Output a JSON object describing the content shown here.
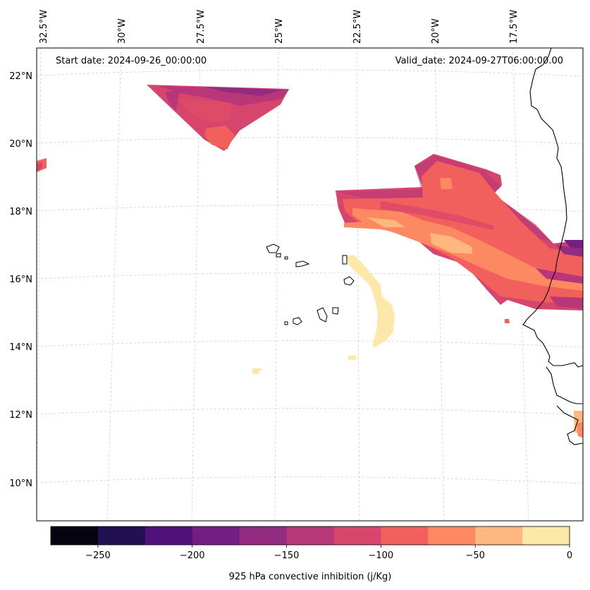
{
  "map": {
    "start_date_text": "Start date: 2024-09-26_00:00:00",
    "valid_date_text": "Valid_date: 2024-09-27T06:00:00.00",
    "lon_labels": [
      "32.5°W",
      "30°W",
      "27.5°W",
      "25°W",
      "22.5°W",
      "20°W",
      "17.5°W"
    ],
    "lat_labels": [
      "22°N",
      "20°N",
      "18°N",
      "16°N",
      "14°N",
      "12°N",
      "10°N"
    ],
    "gridlines": "dashed"
  },
  "colorbar": {
    "label": "925 hPa convective inhibition (j/Kg)",
    "tick_labels": [
      "−250",
      "−200",
      "−150",
      "−100",
      "−50",
      "0"
    ],
    "levels": [
      -275,
      -250,
      -225,
      -200,
      -175,
      -150,
      -125,
      -100,
      -75,
      -50,
      -25,
      0
    ],
    "colors": [
      "#05040f",
      "#221150",
      "#4f127b",
      "#721f81",
      "#932b80",
      "#b73779",
      "#d8456c",
      "#f1605d",
      "#fc8961",
      "#feb77e",
      "#fde7a9"
    ]
  }
}
